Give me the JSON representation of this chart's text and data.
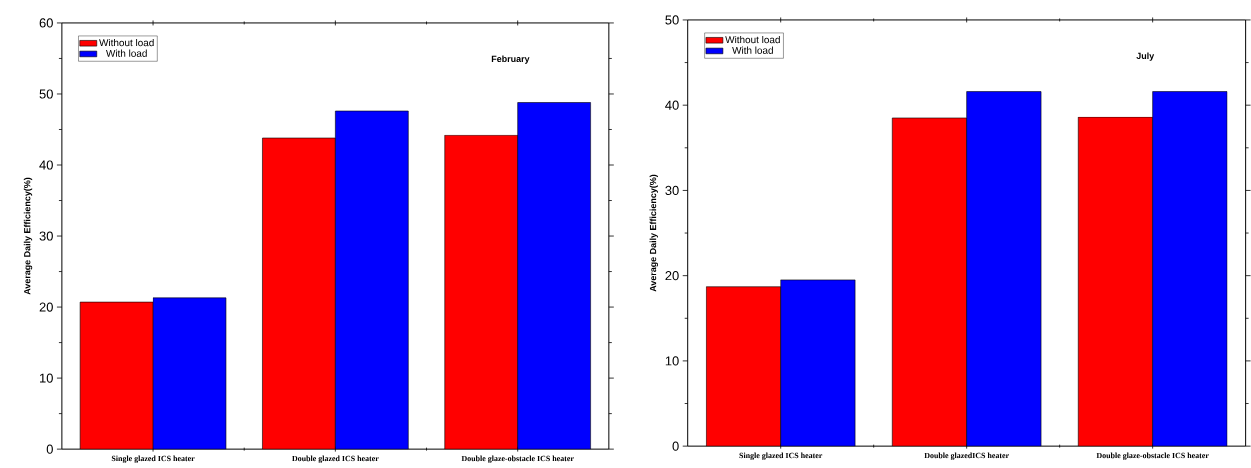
{
  "chart_data": [
    {
      "type": "bar",
      "title": "February",
      "ylabel": "Average Daily Efficiency(%)",
      "categories": [
        "Single glazed ICS heater",
        "Double glazed ICS heater",
        "Double glaze-obstacle ICS heater"
      ],
      "series": [
        {
          "name": "Without load",
          "color": "#ff0000",
          "values": [
            20.7,
            43.8,
            44.2
          ]
        },
        {
          "name": "With load",
          "color": "#0000ff",
          "values": [
            21.3,
            47.6,
            48.8
          ]
        }
      ],
      "ylim": [
        0,
        60
      ],
      "yticks": [
        0,
        10,
        20,
        30,
        40,
        50,
        60
      ],
      "legend": "top left"
    },
    {
      "type": "bar",
      "title": "July",
      "ylabel": "Average Daily Efficiency(%)",
      "categories": [
        "Single glazed ICS heater",
        "Double glazedICS heater",
        "Double glaze-obstacle ICS heater"
      ],
      "series": [
        {
          "name": "Without load",
          "color": "#ff0000",
          "values": [
            18.7,
            38.5,
            38.6
          ]
        },
        {
          "name": "With load",
          "color": "#0000ff",
          "values": [
            19.5,
            41.6,
            41.6
          ]
        }
      ],
      "ylim": [
        0,
        50
      ],
      "yticks": [
        0,
        10,
        20,
        30,
        40,
        50
      ],
      "legend": "top left"
    }
  ]
}
